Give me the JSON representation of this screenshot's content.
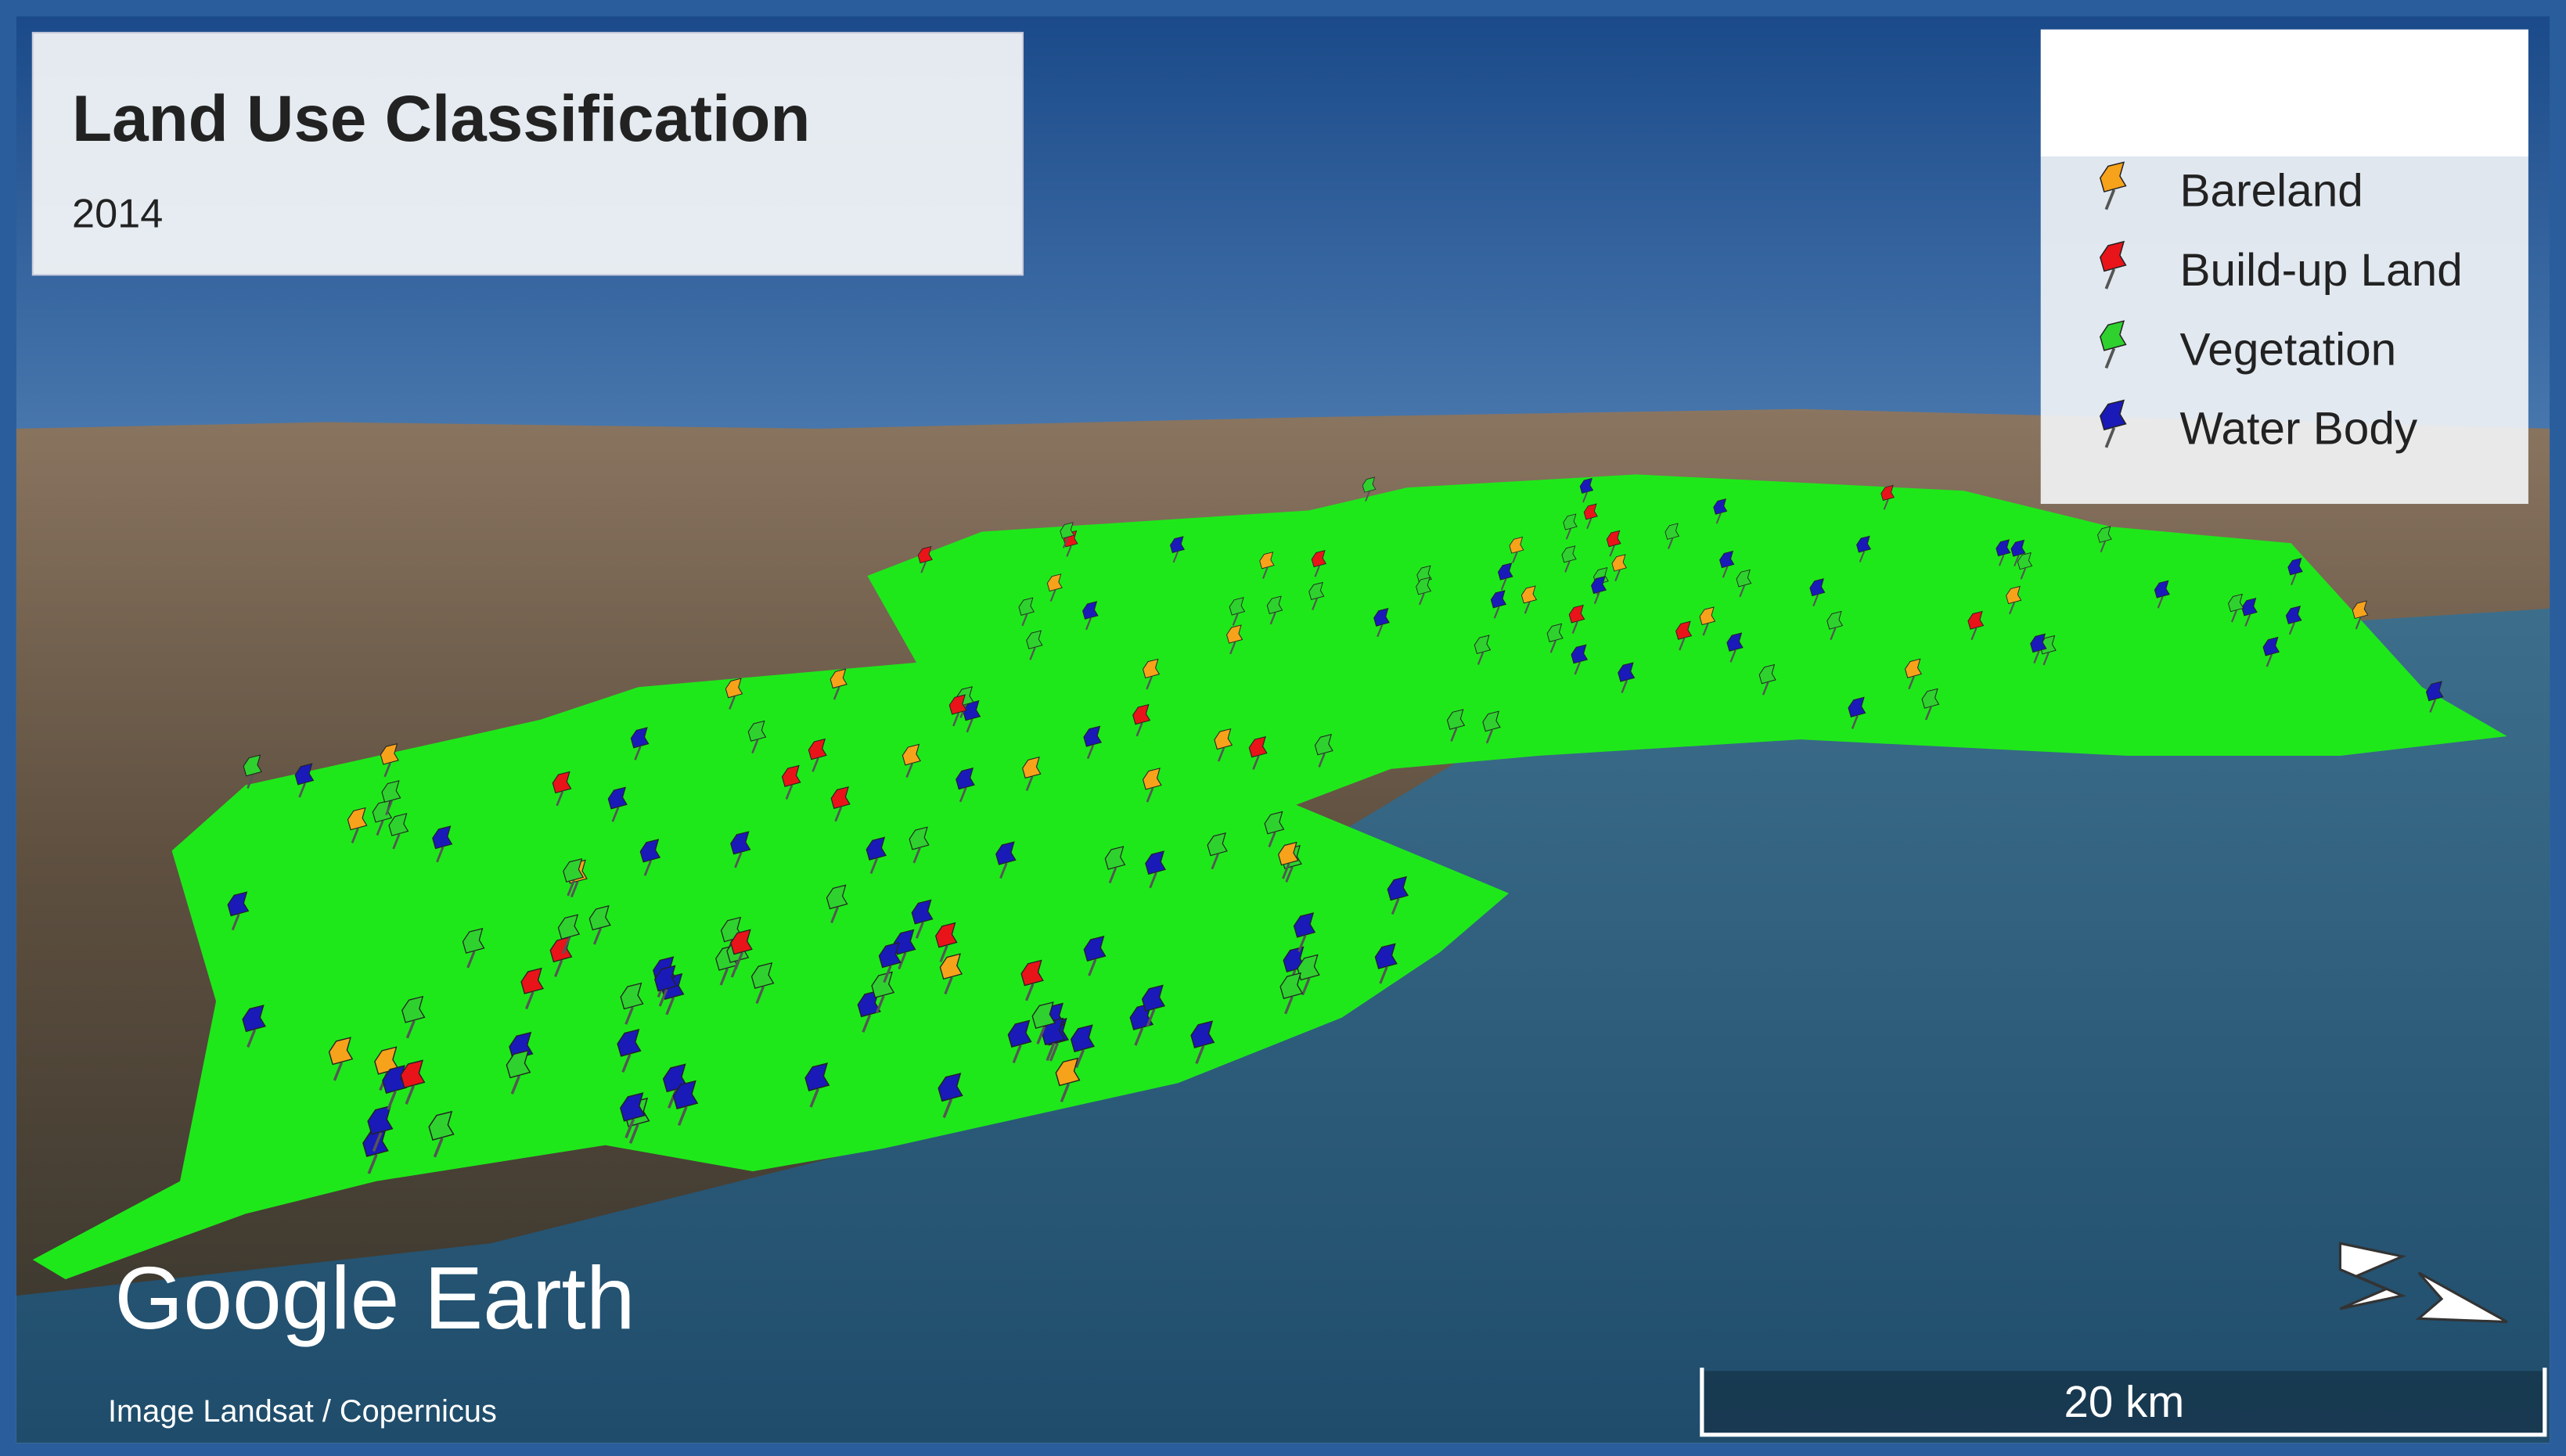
{
  "header": {
    "title": "Land Use Classification",
    "subtitle": "2014"
  },
  "legend": {
    "items": [
      {
        "label": "Bareland",
        "color": "#f7a21b"
      },
      {
        "label": "Build-up Land",
        "color": "#e8141a"
      },
      {
        "label": "Vegetation",
        "color": "#2fd12f"
      },
      {
        "label": "Water Body",
        "color": "#1a1ab8"
      }
    ]
  },
  "branding": {
    "logo": "Google Earth",
    "attribution": "Image Landsat / Copernicus"
  },
  "scale_bar": {
    "label": "20 km"
  }
}
